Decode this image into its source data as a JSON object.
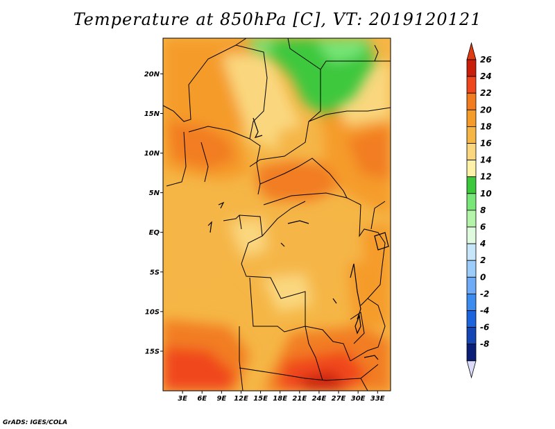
{
  "title": "Temperature at 850hPa [C], VT: 2019120121",
  "credit": "GrADS: IGES/COLA",
  "lat_ticks": [
    "20N",
    "15N",
    "10N",
    "5N",
    "EQ",
    "5S",
    "10S",
    "15S"
  ],
  "lat_values": [
    20,
    15,
    10,
    5,
    0,
    -5,
    -10,
    -15
  ],
  "lon_ticks": [
    "3E",
    "6E",
    "9E",
    "12E",
    "15E",
    "18E",
    "21E",
    "24E",
    "27E",
    "30E",
    "33E"
  ],
  "lon_values": [
    3,
    6,
    9,
    12,
    15,
    18,
    21,
    24,
    27,
    30,
    33
  ],
  "map_extent": {
    "lon": [
      0,
      35
    ],
    "lat": [
      -20,
      24.5
    ]
  },
  "colorbar": {
    "labels": [
      "26",
      "24",
      "22",
      "20",
      "18",
      "16",
      "14",
      "12",
      "10",
      "8",
      "6",
      "4",
      "2",
      "0",
      "-2",
      "-4",
      "-6",
      "-8"
    ],
    "colors": [
      "#c81e0a",
      "#f0461e",
      "#f27d20",
      "#f59b2a",
      "#f5b646",
      "#fad77e",
      "#fef1a8",
      "#3cc83c",
      "#78e678",
      "#b4f4aa",
      "#e0fae0",
      "#c8e6fa",
      "#9ccdfa",
      "#6eaaf5",
      "#3c8cf0",
      "#1e64dc",
      "#1446b4",
      "#0a1e78"
    ],
    "top_arrow_color": "#e03c14",
    "bottom_arrow_color": "#dcdcfa"
  }
}
